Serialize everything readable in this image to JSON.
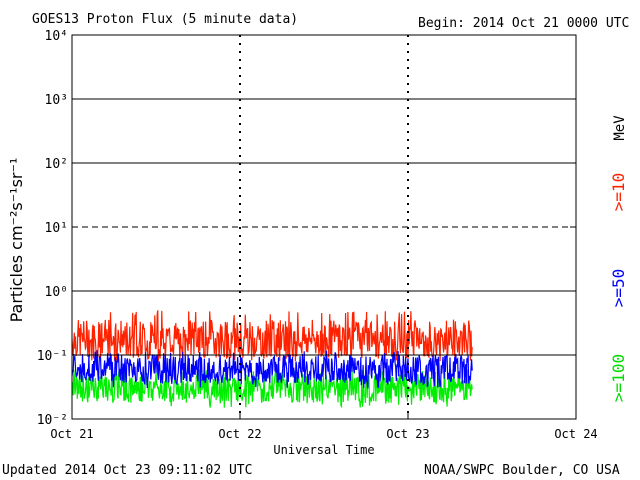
{
  "header": {
    "title": "GOES13 Proton Flux (5 minute data)",
    "begin": "Begin: 2014 Oct 21 0000 UTC"
  },
  "footer": {
    "updated": "Updated 2014 Oct 23 09:11:02 UTC",
    "credit": "NOAA/SWPC Boulder, CO USA"
  },
  "chart_data": {
    "type": "line",
    "title": "GOES13 Proton Flux (5 minute data)",
    "xlabel": "Universal Time",
    "ylabel": "Particles cm⁻²s⁻¹sr⁻¹",
    "yscale": "log",
    "ylim": [
      0.01,
      10000
    ],
    "xlim": [
      "2014-10-21 00:00",
      "2014-10-24 00:00"
    ],
    "x_ticks": [
      "Oct 21",
      "Oct 22",
      "Oct 23",
      "Oct 24"
    ],
    "y_ticks": [
      "10⁻²",
      "10⁻¹",
      "10⁰",
      "10¹",
      "10²",
      "10³",
      "10⁴"
    ],
    "grid": {
      "solid_lines_at": [
        0.1,
        1,
        100,
        1000
      ],
      "dashed_line_at": 10,
      "dashed_day_lines_at": [
        "Oct 22",
        "Oct 23"
      ]
    },
    "unit_label": "MeV",
    "series": [
      {
        "name": ">=10",
        "color": "#ff2200",
        "typical_value": 0.18,
        "range": [
          0.08,
          0.5
        ]
      },
      {
        "name": ">=50",
        "color": "#0000ff",
        "typical_value": 0.06,
        "range": [
          0.03,
          0.12
        ]
      },
      {
        "name": ">=100",
        "color": "#00ee00",
        "typical_value": 0.03,
        "range": [
          0.015,
          0.06
        ]
      }
    ],
    "data_end": "2014-10-23 09:10"
  }
}
